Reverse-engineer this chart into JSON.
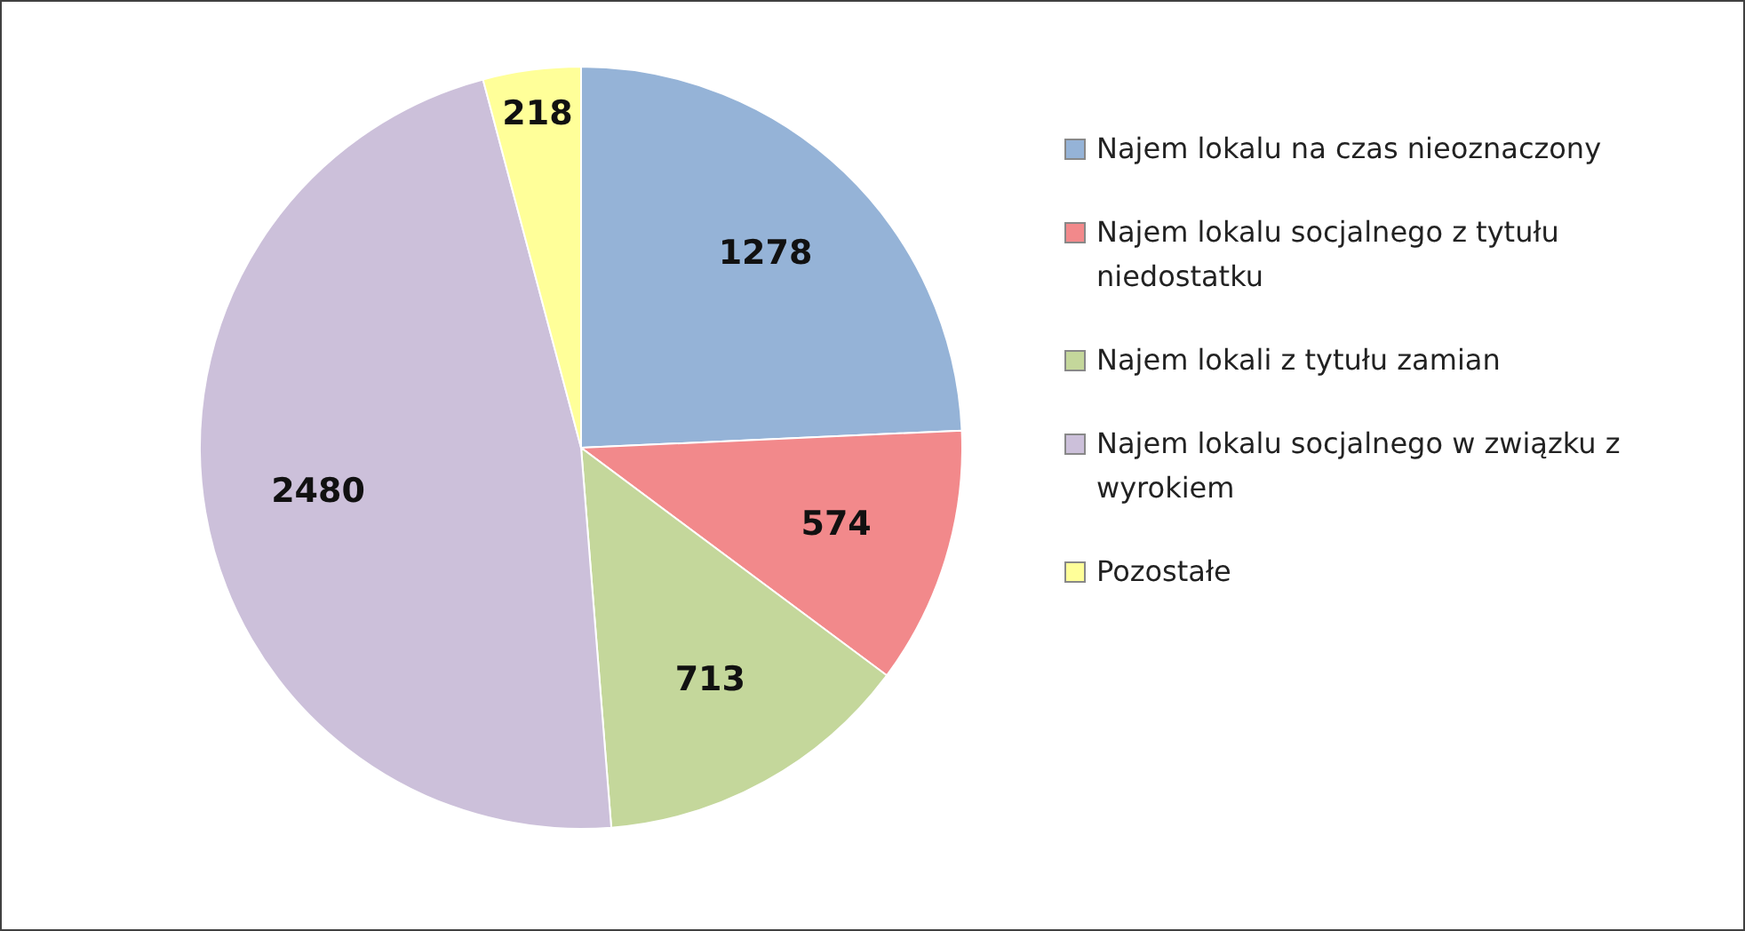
{
  "chart_data": {
    "type": "pie",
    "categories": [
      "Najem lokalu na czas nieoznaczony",
      "Najem lokalu socjalnego z tytułu niedostatku",
      "Najem lokali z tytułu zamian",
      "Najem lokalu socjalnego w związku z wyrokiem",
      "Pozostałe"
    ],
    "values": [
      1278,
      574,
      713,
      2480,
      218
    ],
    "colors": [
      "#95b3d7",
      "#f2898b",
      "#c4d79b",
      "#ccc0da",
      "#ffff99"
    ],
    "data_labels": true,
    "legend": "right"
  }
}
